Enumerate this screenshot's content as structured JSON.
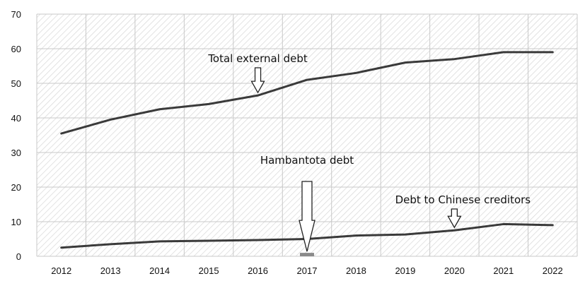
{
  "chart_data": {
    "type": "line",
    "title": "",
    "xlabel": "",
    "ylabel": "",
    "x": [
      2012,
      2013,
      2014,
      2015,
      2016,
      2017,
      2018,
      2019,
      2020,
      2021,
      2022
    ],
    "xticks": [
      "2012",
      "2013",
      "2014",
      "2015",
      "2016",
      "2017",
      "2018",
      "2019",
      "2020",
      "2021",
      "2022"
    ],
    "ylim": [
      0,
      70
    ],
    "yticks": [
      "0",
      "10",
      "20",
      "30",
      "40",
      "50",
      "60",
      "70"
    ],
    "grid": true,
    "legend": "none",
    "series": [
      {
        "name": "Total external debt",
        "values": [
          35.5,
          39.5,
          42.5,
          44.0,
          46.5,
          51.0,
          53.0,
          56.0,
          57.0,
          59.0,
          59.0
        ]
      },
      {
        "name": "Debt to Chinese creditors",
        "values": [
          2.5,
          3.5,
          4.3,
          4.5,
          4.7,
          5.0,
          6.0,
          6.3,
          7.5,
          9.3,
          9.0
        ]
      }
    ],
    "bars": [
      {
        "name": "Hambantota debt",
        "x": 2017,
        "value": 1.0
      }
    ],
    "annotations": [
      {
        "text": "Total external debt",
        "target_x": 2016,
        "target_series": "Total external debt"
      },
      {
        "text": "Hambantota debt",
        "target_x": 2017,
        "target_series": "Hambantota debt"
      },
      {
        "text": "Debt to Chinese creditors",
        "target_x": 2020,
        "target_series": "Debt to Chinese creditors"
      }
    ],
    "colors": {
      "line": "#3a3a3a",
      "bar": "#8a8a8a",
      "grid": "#c8c8c8",
      "hatch": "#d9d9d9"
    }
  }
}
